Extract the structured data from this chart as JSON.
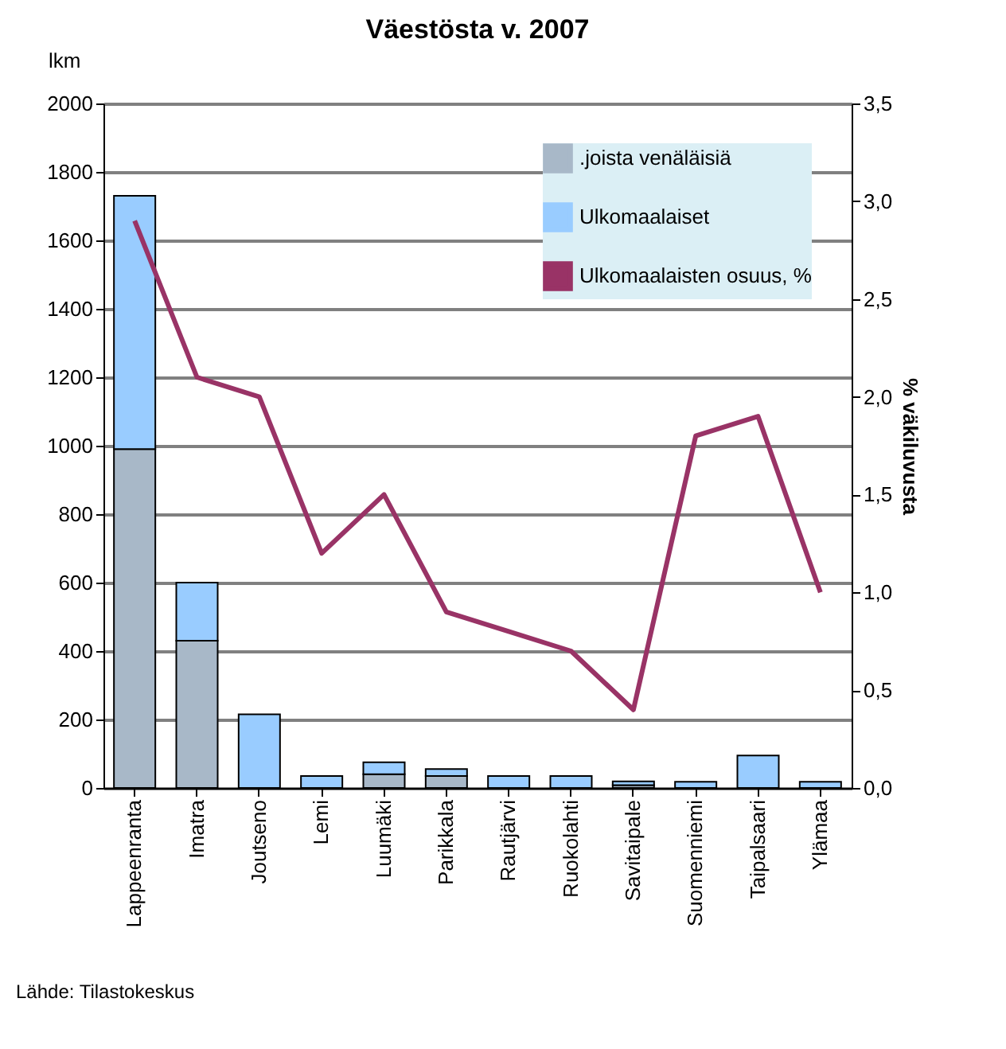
{
  "chart_data": {
    "type": "bar",
    "title": "Väestösta v. 2007",
    "ylabel": "lkm",
    "y2label": "% väkiluvusta",
    "categories": [
      "Lappeenranta",
      "Imatra",
      "Joutseno",
      "Lemi",
      "Luumäki",
      "Parikkala",
      "Rautjärvi",
      "Ruokolahti",
      "Savitaipale",
      "Suomenniemi",
      "Taipalsaari",
      "Ylämaa"
    ],
    "stacked": true,
    "series": [
      {
        "name": ".joista venäläisiä",
        "color": "#a8b8c8",
        "values": [
          990,
          430,
          0,
          0,
          40,
          35,
          0,
          0,
          8,
          0,
          0,
          0
        ]
      },
      {
        "name": "Ulkomaalaiset",
        "color": "#99ccff",
        "values": [
          740,
          170,
          215,
          35,
          35,
          20,
          35,
          35,
          11,
          18,
          95,
          18
        ]
      },
      {
        "name": "Ulkomaalaisten osuus, %",
        "type": "line",
        "axis": "y2",
        "color": "#993366",
        "values": [
          2.9,
          2.1,
          2.0,
          1.2,
          1.5,
          0.9,
          0.8,
          0.7,
          0.4,
          1.8,
          1.9,
          1.0
        ]
      }
    ],
    "ylim": [
      0,
      2000
    ],
    "yticks": [
      0,
      200,
      400,
      600,
      800,
      1000,
      1200,
      1400,
      1600,
      1800,
      2000
    ],
    "y2lim": [
      0,
      3.5
    ],
    "y2ticks": [
      {
        "value": 0,
        "label": "0,0"
      },
      {
        "value": 0.5,
        "label": "0,5"
      },
      {
        "value": 1,
        "label": "1,0"
      },
      {
        "value": 1.5,
        "label": "1,5"
      },
      {
        "value": 2,
        "label": "2,0"
      },
      {
        "value": 2.5,
        "label": "2,5"
      },
      {
        "value": 3,
        "label": "3,0"
      },
      {
        "value": 3.5,
        "label": "3,5"
      }
    ],
    "grid": "y",
    "legend": "top right",
    "annotations": [
      "Lähde: Tilastokeskus"
    ]
  }
}
